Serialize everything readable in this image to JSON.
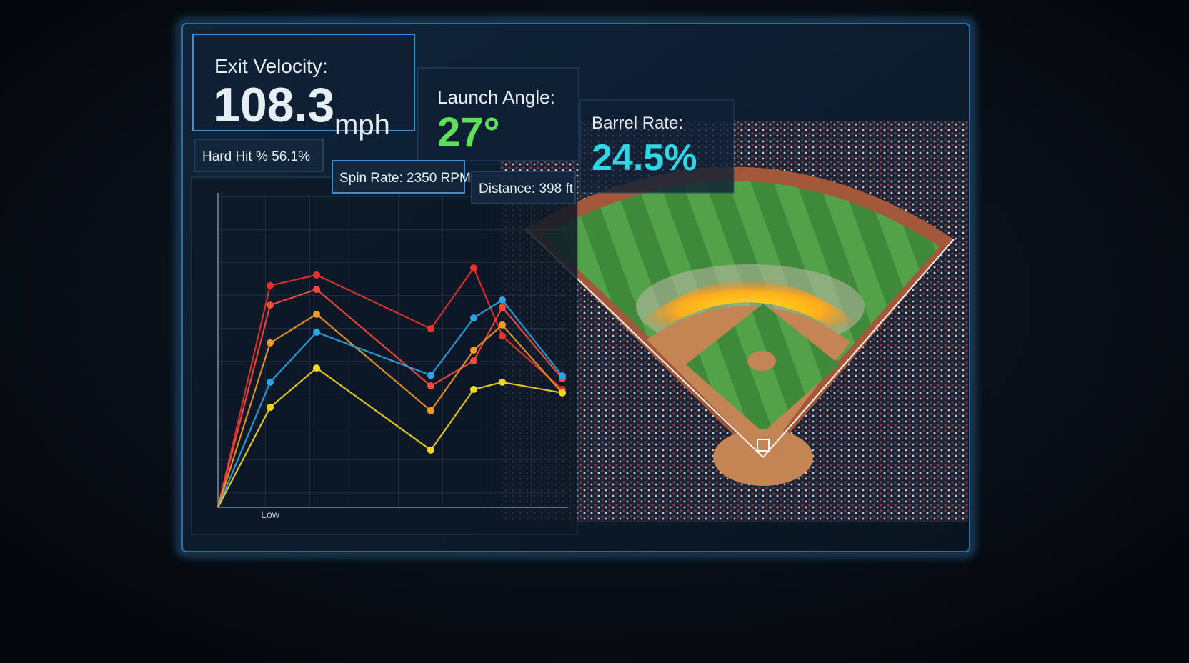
{
  "metrics": [
    {
      "label": "Exit Velocity:",
      "value": "108.3",
      "unit": "mph"
    },
    {
      "label": "Launch Angle:",
      "value": "27°"
    },
    {
      "label": "Barrel Rate:",
      "value": "24.5%"
    }
  ],
  "stats": [
    "Hard Hit % 56.1%",
    "Spin Rate: 2350 RPM",
    "Distance: 398 ft"
  ],
  "chart_data": {
    "type": "line",
    "categories": [
      null,
      "Low",
      null,
      null,
      null,
      null,
      null
    ],
    "series": [
      {
        "color": "#e8332b",
        "values": [
          0,
          70.5,
          73.9,
          56.8,
          76.1,
          54.5,
          37.5
        ]
      },
      {
        "color": "#ff4a3a",
        "values": [
          0,
          64.3,
          69.3,
          38.6,
          46.6,
          63.6,
          40.9
        ]
      },
      {
        "color": "#f59a23",
        "values": [
          0,
          52.3,
          61.4,
          30.7,
          50.0,
          58.0,
          36.4
        ]
      },
      {
        "color": "#2aa6e8",
        "values": [
          0,
          39.8,
          55.7,
          42.0,
          60.2,
          65.9,
          41.8
        ]
      },
      {
        "color": "#f5d51e",
        "values": [
          0,
          31.8,
          44.3,
          18.2,
          37.5,
          39.8,
          36.4
        ]
      }
    ],
    "ylim": [
      0,
      100
    ]
  }
}
